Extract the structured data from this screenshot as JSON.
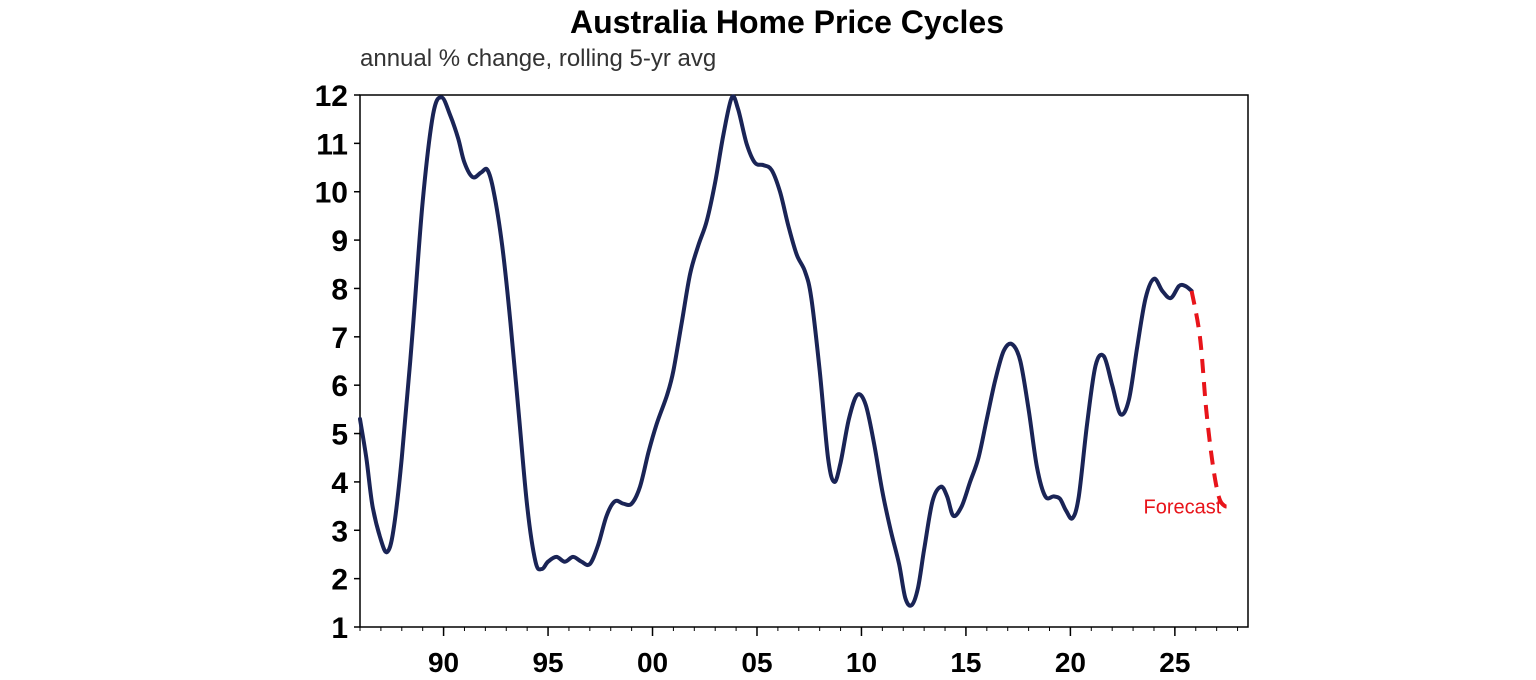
{
  "chart_data": {
    "type": "line",
    "title": "Australia Home Price Cycles",
    "subtitle": "annual % change, rolling 5-yr avg",
    "xlabel": "",
    "ylabel": "",
    "x_range": [
      1986,
      2028.5
    ],
    "ylim": [
      1,
      12
    ],
    "y_ticks": [
      1,
      2,
      3,
      4,
      5,
      6,
      7,
      8,
      9,
      10,
      11,
      12
    ],
    "x_ticks": [
      {
        "value": 1990,
        "label": "90"
      },
      {
        "value": 1995,
        "label": "95"
      },
      {
        "value": 2000,
        "label": "00"
      },
      {
        "value": 2005,
        "label": "05"
      },
      {
        "value": 2010,
        "label": "10"
      },
      {
        "value": 2015,
        "label": "15"
      },
      {
        "value": 2020,
        "label": "20"
      },
      {
        "value": 2025,
        "label": "25"
      }
    ],
    "grid": false,
    "series": [
      {
        "name": "",
        "color": "#1a2456",
        "style": "solid",
        "points": [
          [
            1986.0,
            5.3
          ],
          [
            1986.3,
            4.5
          ],
          [
            1986.6,
            3.5
          ],
          [
            1987.0,
            2.8
          ],
          [
            1987.3,
            2.55
          ],
          [
            1987.6,
            3.0
          ],
          [
            1988.0,
            4.5
          ],
          [
            1988.5,
            7.0
          ],
          [
            1989.0,
            9.8
          ],
          [
            1989.5,
            11.6
          ],
          [
            1989.9,
            11.95
          ],
          [
            1990.3,
            11.6
          ],
          [
            1990.7,
            11.1
          ],
          [
            1991.0,
            10.6
          ],
          [
            1991.4,
            10.3
          ],
          [
            1991.8,
            10.4
          ],
          [
            1992.1,
            10.45
          ],
          [
            1992.4,
            10.0
          ],
          [
            1992.8,
            8.9
          ],
          [
            1993.2,
            7.3
          ],
          [
            1993.6,
            5.4
          ],
          [
            1994.0,
            3.5
          ],
          [
            1994.4,
            2.35
          ],
          [
            1994.7,
            2.2
          ],
          [
            1995.0,
            2.35
          ],
          [
            1995.4,
            2.45
          ],
          [
            1995.8,
            2.35
          ],
          [
            1996.2,
            2.45
          ],
          [
            1996.6,
            2.35
          ],
          [
            1997.0,
            2.3
          ],
          [
            1997.4,
            2.7
          ],
          [
            1997.8,
            3.3
          ],
          [
            1998.2,
            3.6
          ],
          [
            1998.6,
            3.55
          ],
          [
            1999.0,
            3.55
          ],
          [
            1999.4,
            3.9
          ],
          [
            1999.8,
            4.6
          ],
          [
            2000.2,
            5.2
          ],
          [
            2000.7,
            5.8
          ],
          [
            2001.0,
            6.3
          ],
          [
            2001.4,
            7.3
          ],
          [
            2001.8,
            8.3
          ],
          [
            2002.2,
            8.9
          ],
          [
            2002.6,
            9.4
          ],
          [
            2003.0,
            10.2
          ],
          [
            2003.4,
            11.2
          ],
          [
            2003.8,
            11.95
          ],
          [
            2004.1,
            11.7
          ],
          [
            2004.5,
            11.0
          ],
          [
            2004.9,
            10.6
          ],
          [
            2005.3,
            10.55
          ],
          [
            2005.7,
            10.45
          ],
          [
            2006.1,
            10.0
          ],
          [
            2006.5,
            9.3
          ],
          [
            2006.9,
            8.7
          ],
          [
            2007.3,
            8.35
          ],
          [
            2007.6,
            7.8
          ],
          [
            2008.0,
            6.3
          ],
          [
            2008.4,
            4.5
          ],
          [
            2008.7,
            4.0
          ],
          [
            2009.0,
            4.4
          ],
          [
            2009.4,
            5.3
          ],
          [
            2009.8,
            5.8
          ],
          [
            2010.2,
            5.6
          ],
          [
            2010.6,
            4.8
          ],
          [
            2011.0,
            3.8
          ],
          [
            2011.4,
            3.0
          ],
          [
            2011.8,
            2.3
          ],
          [
            2012.1,
            1.6
          ],
          [
            2012.4,
            1.45
          ],
          [
            2012.7,
            1.8
          ],
          [
            2013.0,
            2.6
          ],
          [
            2013.4,
            3.6
          ],
          [
            2013.8,
            3.9
          ],
          [
            2014.1,
            3.7
          ],
          [
            2014.4,
            3.3
          ],
          [
            2014.8,
            3.5
          ],
          [
            2015.2,
            4.0
          ],
          [
            2015.6,
            4.5
          ],
          [
            2016.0,
            5.3
          ],
          [
            2016.4,
            6.1
          ],
          [
            2016.8,
            6.7
          ],
          [
            2017.2,
            6.85
          ],
          [
            2017.6,
            6.5
          ],
          [
            2018.0,
            5.5
          ],
          [
            2018.4,
            4.3
          ],
          [
            2018.8,
            3.7
          ],
          [
            2019.2,
            3.7
          ],
          [
            2019.5,
            3.65
          ],
          [
            2019.8,
            3.4
          ],
          [
            2020.1,
            3.25
          ],
          [
            2020.4,
            3.7
          ],
          [
            2020.8,
            5.2
          ],
          [
            2021.2,
            6.4
          ],
          [
            2021.6,
            6.6
          ],
          [
            2022.0,
            6.0
          ],
          [
            2022.4,
            5.4
          ],
          [
            2022.8,
            5.7
          ],
          [
            2023.2,
            6.8
          ],
          [
            2023.6,
            7.8
          ],
          [
            2024.0,
            8.2
          ],
          [
            2024.4,
            7.95
          ],
          [
            2024.8,
            7.8
          ],
          [
            2025.2,
            8.05
          ],
          [
            2025.5,
            8.05
          ],
          [
            2025.8,
            7.95
          ]
        ]
      },
      {
        "name": "Forecast",
        "color": "#e8141a",
        "style": "dashed",
        "points": [
          [
            2025.8,
            7.95
          ],
          [
            2026.2,
            7.0
          ],
          [
            2026.5,
            5.5
          ],
          [
            2026.8,
            4.4
          ],
          [
            2027.1,
            3.7
          ],
          [
            2027.4,
            3.5
          ],
          [
            2027.7,
            3.52
          ]
        ]
      }
    ],
    "annotations": [
      {
        "text": "Forecast",
        "x": 2023.5,
        "y": 3.35,
        "color": "#e8141a"
      }
    ]
  }
}
